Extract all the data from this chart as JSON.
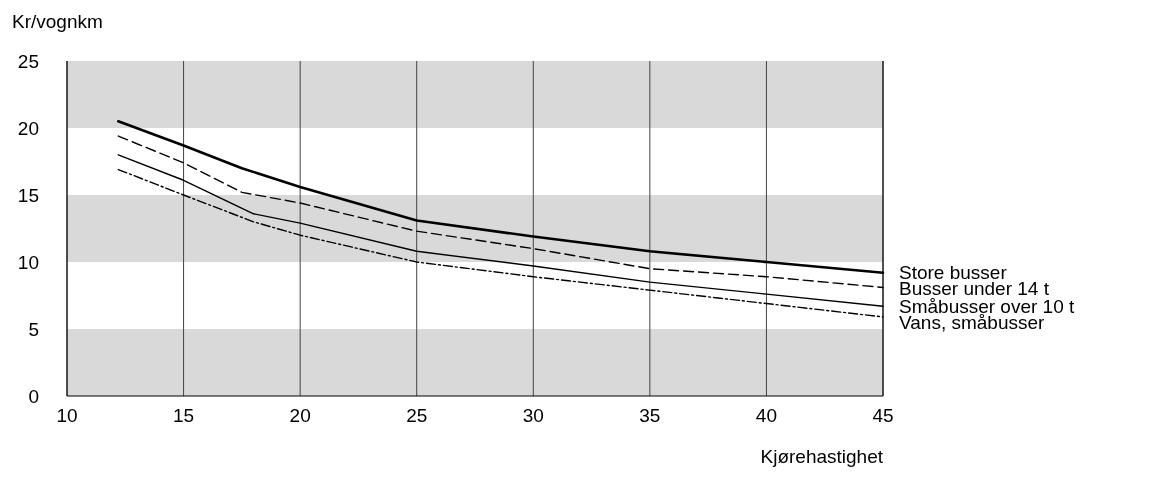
{
  "chart_data": {
    "type": "line",
    "ylabel": "Kr/vognkm",
    "xlabel": "Kjørehastighet",
    "xlim": [
      10,
      45
    ],
    "xticks": [
      10,
      15,
      20,
      25,
      30,
      35,
      40,
      45
    ],
    "ylim": [
      0,
      25
    ],
    "yticks": [
      0,
      5,
      10,
      15,
      20,
      25
    ],
    "grid": "x",
    "bands": [
      {
        "axis": "y",
        "from": 0,
        "to": 5,
        "color": "#d9d9d9"
      },
      {
        "axis": "y",
        "from": 10,
        "to": 15,
        "color": "#d9d9d9"
      },
      {
        "axis": "y",
        "from": 20,
        "to": 25,
        "color": "#d9d9d9"
      }
    ],
    "series": [
      {
        "name": "Store busser",
        "color": "#000000",
        "line_style": "solid",
        "x": [
          12.2,
          15,
          17.5,
          20,
          25,
          30,
          35,
          40,
          45
        ],
        "values": [
          20.5,
          18.7,
          17.0,
          15.6,
          13.1,
          11.9,
          10.8,
          10.0,
          9.2
        ]
      },
      {
        "name": "Busser under 14 t",
        "color": "#000000",
        "line_style": "dashed",
        "x": [
          12.2,
          15,
          17.5,
          20,
          25,
          30,
          35,
          40,
          45
        ],
        "values": [
          19.4,
          17.4,
          15.2,
          14.4,
          12.3,
          11.0,
          9.5,
          8.9,
          8.1
        ]
      },
      {
        "name": "Småbusser over 10 t",
        "color": "#000000",
        "line_style": "solid",
        "x": [
          12.2,
          15,
          18,
          20,
          25,
          30,
          35,
          40,
          45
        ],
        "values": [
          18.0,
          16.1,
          13.6,
          12.9,
          10.8,
          9.7,
          8.5,
          7.6,
          6.7
        ]
      },
      {
        "name": "Vans, småbusser",
        "color": "#000000",
        "line_style": "dotted",
        "x": [
          12.2,
          15,
          18,
          20,
          25,
          30,
          35,
          40,
          45
        ],
        "values": [
          16.9,
          15.0,
          13.0,
          12.0,
          10.0,
          8.9,
          7.9,
          6.9,
          5.9
        ]
      }
    ]
  }
}
